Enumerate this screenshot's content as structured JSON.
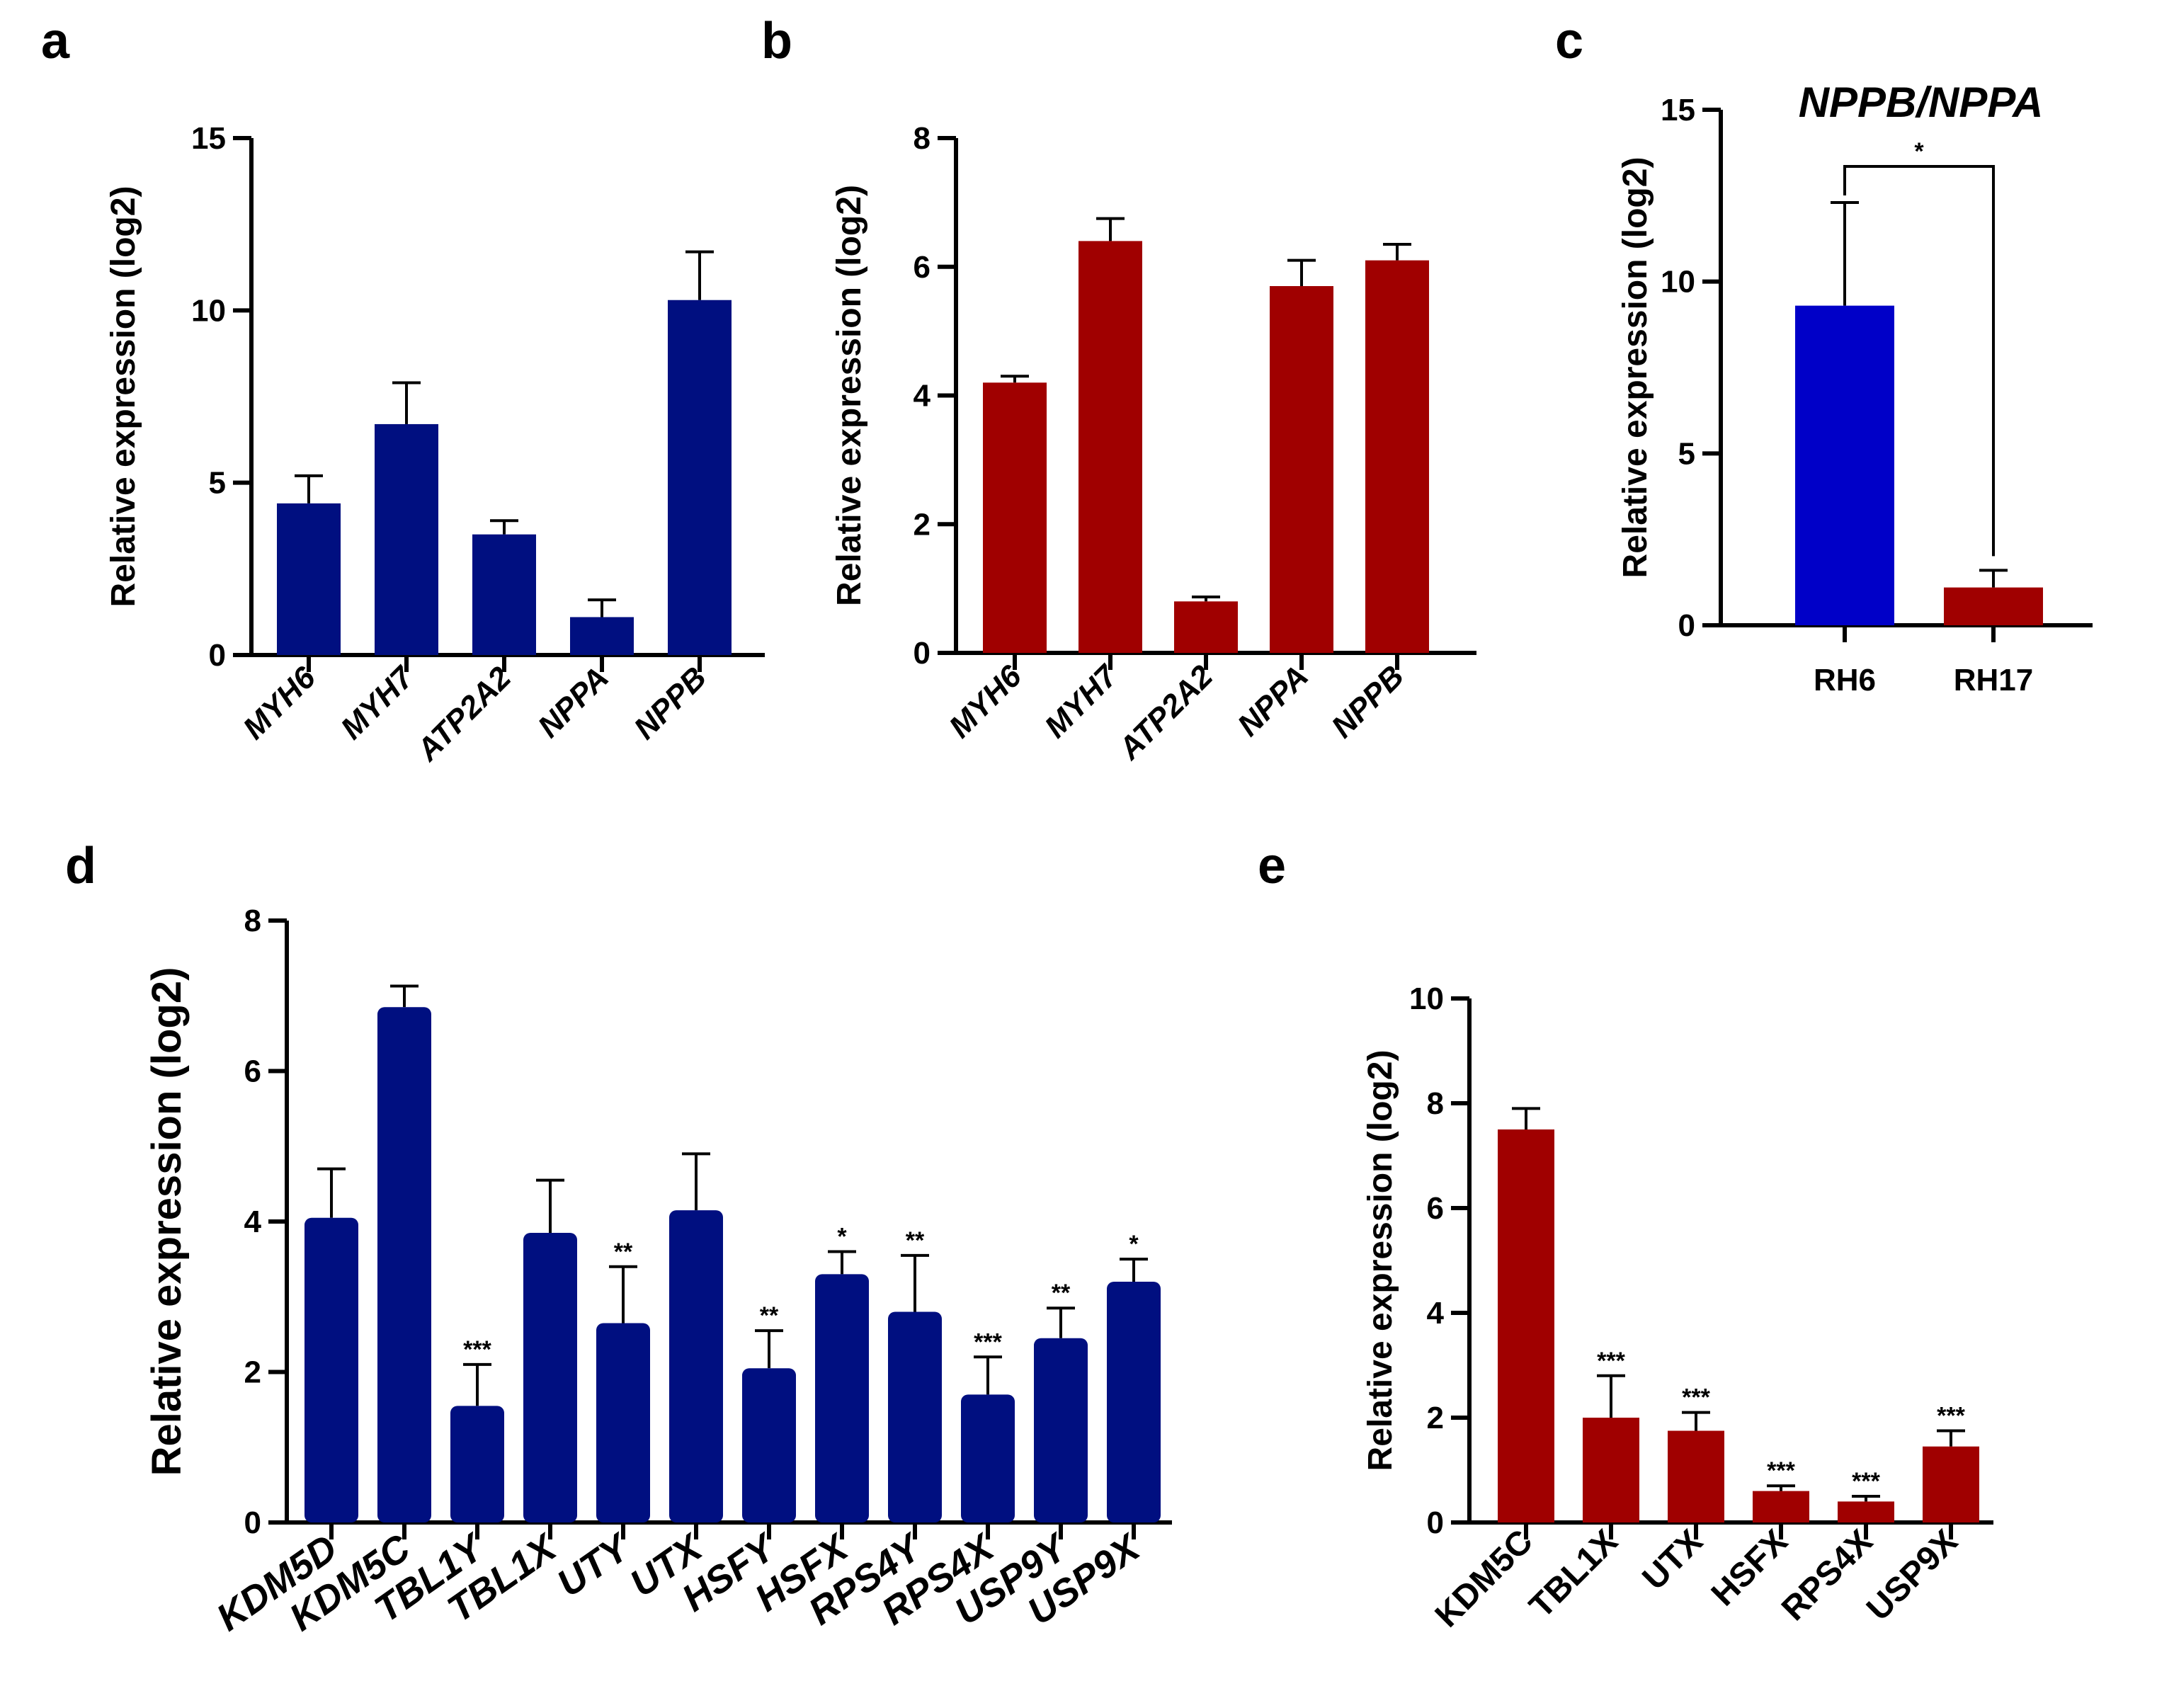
{
  "panels": {
    "a": "a",
    "b": "b",
    "c": "c",
    "d": "d",
    "e": "e"
  },
  "colors": {
    "navy": "#000f80",
    "red": "#a00000",
    "blue": "#0000c8"
  },
  "chart_data": [
    {
      "id": "a",
      "type": "bar",
      "title": "",
      "ylabel": "Relative expression (log2)",
      "categories": [
        "MYH6",
        "MYH7",
        "ATP2A2",
        "NPPA",
        "NPPB"
      ],
      "values": [
        4.4,
        6.7,
        3.5,
        1.1,
        10.3
      ],
      "errors": [
        0.8,
        1.2,
        0.4,
        0.5,
        1.4
      ],
      "ylim": [
        0,
        15
      ],
      "yticks": [
        0,
        5,
        10,
        15
      ],
      "color": "navy",
      "significance": []
    },
    {
      "id": "b",
      "type": "bar",
      "title": "",
      "ylabel": "Relative expression (log2)",
      "categories": [
        "MYH6",
        "MYH7",
        "ATP2A2",
        "NPPA",
        "NPPB"
      ],
      "values": [
        4.2,
        6.4,
        0.8,
        5.7,
        6.1
      ],
      "errors": [
        0.1,
        0.35,
        0.07,
        0.4,
        0.25
      ],
      "ylim": [
        0,
        8
      ],
      "yticks": [
        0,
        2,
        4,
        6,
        8
      ],
      "color": "red",
      "significance": []
    },
    {
      "id": "c",
      "type": "bar",
      "title": "NPPB/NPPA",
      "ylabel": "Relative expression (log2)",
      "categories": [
        "RH6",
        "RH17"
      ],
      "values": [
        9.3,
        1.1
      ],
      "errors": [
        3.0,
        0.5
      ],
      "ylim": [
        0,
        15
      ],
      "yticks": [
        0,
        5,
        10,
        15
      ],
      "colors": [
        "blue",
        "red"
      ],
      "comparison": {
        "from": 0,
        "to": 1,
        "label": "*"
      }
    },
    {
      "id": "d",
      "type": "bar",
      "title": "",
      "ylabel": "Relative expression (log2)",
      "categories": [
        "KDM5D",
        "KDM5C",
        "TBL1Y",
        "TBL1X",
        "UTY",
        "UTX",
        "HSFY",
        "HSFX",
        "RPS4Y",
        "RPS4X",
        "USP9Y",
        "USP9X"
      ],
      "values": [
        4.05,
        6.85,
        1.55,
        3.85,
        2.65,
        4.15,
        2.05,
        3.3,
        2.8,
        1.7,
        2.45,
        3.2
      ],
      "errors": [
        0.65,
        0.28,
        0.55,
        0.7,
        0.75,
        0.75,
        0.5,
        0.3,
        0.75,
        0.5,
        0.4,
        0.3
      ],
      "significance": [
        "",
        "",
        "***",
        "",
        "**",
        "",
        "**",
        "*",
        "**",
        "***",
        "**",
        "*"
      ],
      "ylim": [
        0,
        8
      ],
      "yticks": [
        0,
        2,
        4,
        6,
        8
      ],
      "color": "navy"
    },
    {
      "id": "e",
      "type": "bar",
      "title": "",
      "ylabel": "Relative expression (log2)",
      "categories": [
        "KDM5C",
        "TBL1X",
        "UTX",
        "HSFX",
        "RPS4X",
        "USP9X"
      ],
      "values": [
        7.5,
        2.0,
        1.75,
        0.6,
        0.4,
        1.45
      ],
      "errors": [
        0.4,
        0.8,
        0.35,
        0.1,
        0.1,
        0.3
      ],
      "significance": [
        "",
        "***",
        "***",
        "***",
        "***",
        "***"
      ],
      "ylim": [
        0,
        10
      ],
      "yticks": [
        0,
        2,
        4,
        6,
        8,
        10
      ],
      "color": "red"
    }
  ]
}
